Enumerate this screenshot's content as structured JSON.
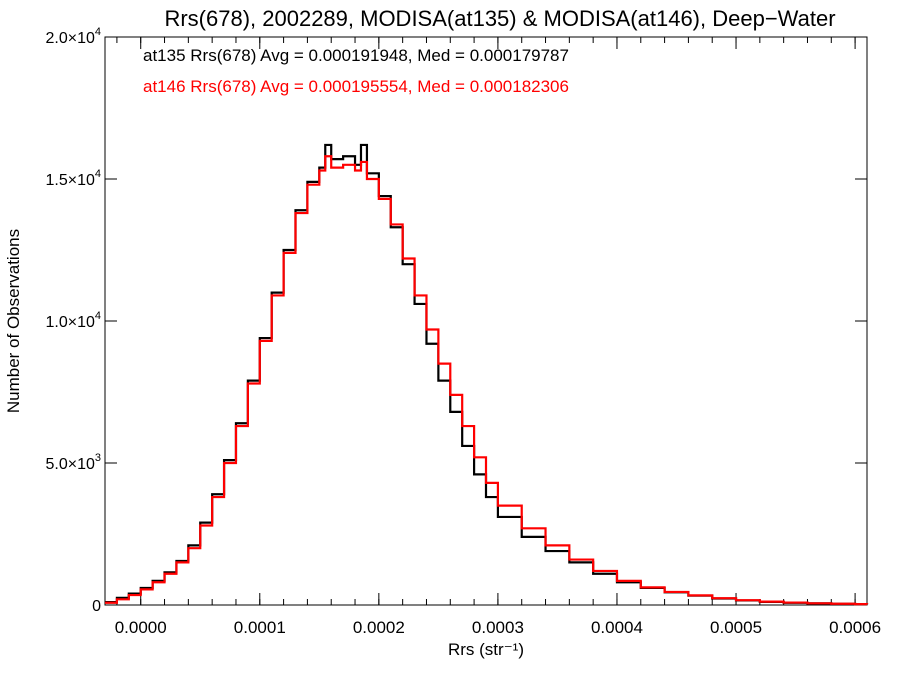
{
  "chart_data": {
    "type": "line",
    "step": true,
    "title": "Rrs(678), 2002289, MODISA(at135) & MODISA(at146), Deep−Water",
    "xlabel": "Rrs (str⁻¹)",
    "ylabel": "Number of Observations",
    "xlim": [
      -3e-05,
      0.00061
    ],
    "ylim": [
      0,
      20000
    ],
    "xticks": [
      {
        "value": 0.0,
        "label": "0.0000"
      },
      {
        "value": 0.0001,
        "label": "0.0001"
      },
      {
        "value": 0.0002,
        "label": "0.0002"
      },
      {
        "value": 0.0003,
        "label": "0.0003"
      },
      {
        "value": 0.0004,
        "label": "0.0004"
      },
      {
        "value": 0.0005,
        "label": "0.0005"
      },
      {
        "value": 0.0006,
        "label": "0.0006"
      }
    ],
    "yticks": [
      {
        "value": 0,
        "mantissa": "0",
        "exp": ""
      },
      {
        "value": 5000,
        "mantissa": "5.0×10",
        "exp": "3"
      },
      {
        "value": 10000,
        "mantissa": "1.0×10",
        "exp": "4"
      },
      {
        "value": 15000,
        "mantissa": "1.5×10",
        "exp": "4"
      },
      {
        "value": 20000,
        "mantissa": "2.0×10",
        "exp": "4"
      }
    ],
    "annotations": [
      {
        "text": "at135 Rrs(678) Avg = 0.000191948, Med = 0.000179787",
        "color": "#000000"
      },
      {
        "text": "at146 Rrs(678) Avg = 0.000195554, Med = 0.000182306",
        "color": "#ff0000"
      }
    ],
    "series": [
      {
        "color": "#000000",
        "x": [
          -3e-05,
          -2e-05,
          -1e-05,
          0.0,
          1e-05,
          2e-05,
          3e-05,
          4e-05,
          5e-05,
          6e-05,
          7e-05,
          8e-05,
          9e-05,
          0.0001,
          0.00011,
          0.00012,
          0.00013,
          0.00014,
          0.00015,
          0.000155,
          0.00016,
          0.00017,
          0.00018,
          0.000185,
          0.00019,
          0.0002,
          0.00021,
          0.00022,
          0.00023,
          0.00024,
          0.00025,
          0.00026,
          0.00027,
          0.00028,
          0.00029,
          0.0003,
          0.00032,
          0.00034,
          0.00036,
          0.00038,
          0.0004,
          0.00042,
          0.00044,
          0.00046,
          0.00048,
          0.0005,
          0.00052,
          0.00054,
          0.00056,
          0.00058,
          0.0006,
          0.00061
        ],
        "y": [
          100,
          250,
          400,
          600,
          850,
          1150,
          1550,
          2100,
          2900,
          3900,
          5100,
          6400,
          7900,
          9400,
          11000,
          12500,
          13900,
          14900,
          15400,
          16200,
          15700,
          15800,
          15500,
          16200,
          15200,
          14400,
          13300,
          12000,
          10600,
          9200,
          7900,
          6800,
          5600,
          4600,
          3800,
          3100,
          2400,
          1900,
          1500,
          1100,
          800,
          600,
          450,
          330,
          230,
          160,
          110,
          80,
          60,
          40,
          25,
          20
        ]
      },
      {
        "color": "#ff0000",
        "x": [
          -3e-05,
          -2e-05,
          -1e-05,
          0.0,
          1e-05,
          2e-05,
          3e-05,
          4e-05,
          5e-05,
          6e-05,
          7e-05,
          8e-05,
          9e-05,
          0.0001,
          0.00011,
          0.00012,
          0.00013,
          0.00014,
          0.00015,
          0.000155,
          0.00016,
          0.00017,
          0.00018,
          0.000185,
          0.00019,
          0.0002,
          0.00021,
          0.00022,
          0.00023,
          0.00024,
          0.00025,
          0.00026,
          0.00027,
          0.00028,
          0.00029,
          0.0003,
          0.00032,
          0.00034,
          0.00036,
          0.00038,
          0.0004,
          0.00042,
          0.00044,
          0.00046,
          0.00048,
          0.0005,
          0.00052,
          0.00054,
          0.00056,
          0.00058,
          0.0006,
          0.00061
        ],
        "y": [
          80,
          200,
          350,
          550,
          800,
          1100,
          1500,
          2000,
          2800,
          3800,
          5000,
          6300,
          7800,
          9300,
          10900,
          12400,
          13800,
          14800,
          15300,
          15800,
          15400,
          15500,
          15300,
          15600,
          15000,
          14300,
          13400,
          12200,
          10900,
          9700,
          8500,
          7400,
          6300,
          5200,
          4300,
          3500,
          2700,
          2100,
          1600,
          1200,
          850,
          620,
          460,
          340,
          240,
          170,
          120,
          85,
          60,
          45,
          30,
          25
        ]
      }
    ]
  }
}
